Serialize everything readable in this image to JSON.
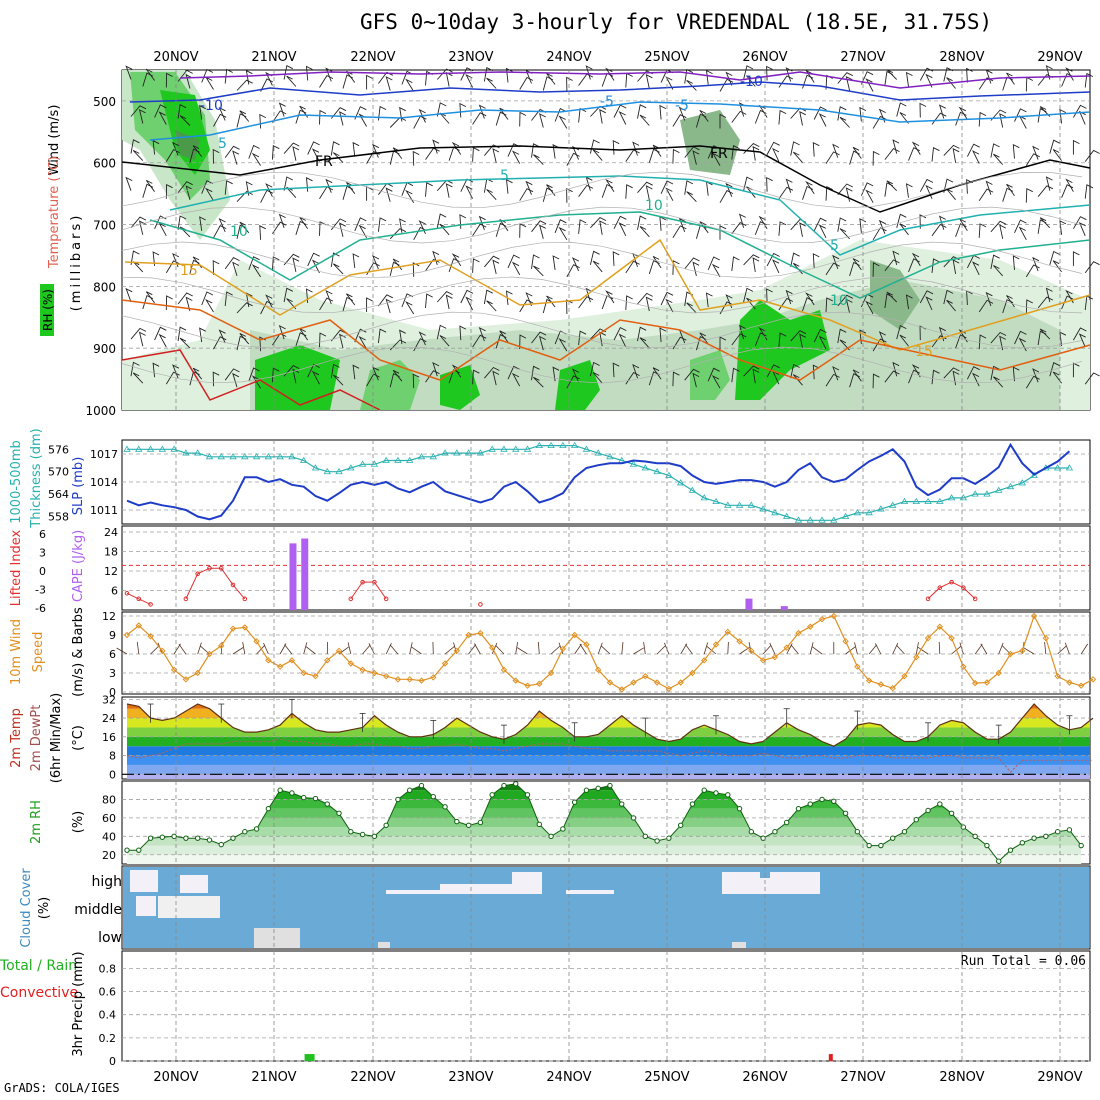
{
  "title": "GFS 0~10day 3-hourly for VREDENDAL (18.5E, 31.75S)",
  "footer": "GrADS: COLA/IGES",
  "dates": [
    "20NOV",
    "21NOV",
    "22NOV",
    "23NOV",
    "24NOV",
    "25NOV",
    "26NOV",
    "27NOV",
    "28NOV",
    "29NOV"
  ],
  "colors": {
    "rh_green": "#1ec81e",
    "thick_cyan": "#2ab0b0",
    "slp_blue": "#1e3cc8",
    "li_red": "#e03030",
    "cape_purple": "#b060f0",
    "wind_orange": "#e09020",
    "cloud_blue": "#6aaad6",
    "temp_orange": "#f0a020",
    "grid_gray": "#a0a0a0"
  },
  "panel_labels": {
    "profile": {
      "wind": "Wind (m/s)",
      "temp": "Temperature (°C)",
      "rh": "RH (%)",
      "pres": "(millibars)"
    },
    "thick": {
      "a": "1000-500mb",
      "b": "Thickness (dm)",
      "c": "SLP (mb)"
    },
    "cape": {
      "a": "Lifted Index",
      "b": "CAPE (J/kg)"
    },
    "wind10": {
      "a": "10m Wind",
      "b": "Speed",
      "c": "(m/s) & Barbs"
    },
    "temp2m": {
      "a": "2m Temp",
      "b": "2m DewPt",
      "c": "(6hr Min/Max)",
      "d": "(°C)"
    },
    "rh2m": {
      "a": "2m RH",
      "b": "(%)"
    },
    "cloud": {
      "a": "Cloud Cover",
      "b": "(%)"
    },
    "precip": {
      "a": "Total / Rain",
      "b": "Convective",
      "c": "3hr Precip (mm)"
    }
  },
  "cloud_levels": [
    "high",
    "middle",
    "low"
  ],
  "run_total": "Run Total = 0.06",
  "contour_labels": [
    {
      "t": "-10",
      "c": "#1e3cc8"
    },
    {
      "t": "-5",
      "c": "#1e90e0"
    },
    {
      "t": "-5",
      "c": "#1e90e0"
    },
    {
      "t": "-10",
      "c": "#1e3cc8"
    },
    {
      "t": "5",
      "c": "#20a0c8"
    },
    {
      "t": "5",
      "c": "#20b0b0"
    },
    {
      "t": "10",
      "c": "#20b090"
    },
    {
      "t": "10",
      "c": "#20b090"
    },
    {
      "t": "15",
      "c": "#e0a020"
    },
    {
      "t": "15",
      "c": "#e0a020"
    },
    {
      "t": "FR",
      "c": "#000000"
    },
    {
      "t": "FR",
      "c": "#000000"
    },
    {
      "t": "5",
      "c": "#20b0b0"
    },
    {
      "t": "10",
      "c": "#20b090"
    }
  ],
  "chart_data": [
    {
      "type": "heatmap",
      "name": "profile",
      "ylabel": "(millibars)",
      "y_ticks": [
        500,
        600,
        700,
        800,
        900,
        1000
      ],
      "ylim": [
        1000,
        450
      ]
    },
    {
      "type": "line",
      "name": "thickness_slp",
      "left_ticks": [
        558,
        564,
        570,
        576
      ],
      "right_ticks": [
        1011,
        1014,
        1017
      ],
      "series": [
        {
          "name": "1000-500mb Thickness (dm)",
          "ylim": [
            556,
            578.5
          ],
          "values": [
            576,
            576,
            576,
            576,
            576,
            575,
            575,
            574,
            574,
            574,
            574,
            574,
            574,
            574,
            574,
            573,
            571,
            570,
            570,
            571,
            572,
            572,
            573,
            573,
            573,
            574,
            574,
            575,
            575,
            575,
            575,
            576,
            576,
            576,
            576,
            577,
            577,
            577,
            577,
            576,
            575,
            574,
            573,
            572,
            571,
            570,
            569,
            567,
            565,
            563,
            562,
            561,
            561,
            561,
            560,
            559,
            558,
            557,
            557,
            557,
            557,
            558,
            559,
            559,
            560,
            561,
            562,
            562,
            562,
            562,
            563,
            563,
            564,
            564,
            565,
            566,
            567,
            569,
            571,
            571,
            571
          ]
        },
        {
          "name": "SLP (mb)",
          "ylim": [
            1009.5,
            1018.5
          ],
          "values": [
            1012,
            1011.5,
            1011.8,
            1011.5,
            1011.3,
            1011,
            1010.3,
            1010,
            1010.4,
            1012,
            1014.5,
            1014.5,
            1014,
            1014.3,
            1013.7,
            1013.5,
            1012.5,
            1012,
            1012.8,
            1013.7,
            1014,
            1013.7,
            1014,
            1013.3,
            1012.9,
            1013.5,
            1014,
            1013,
            1012.6,
            1012.2,
            1011.8,
            1012.2,
            1013.5,
            1014,
            1013,
            1011.8,
            1012.2,
            1012.8,
            1014.5,
            1015.5,
            1015.8,
            1016,
            1016,
            1016.3,
            1016.2,
            1016,
            1016,
            1015.7,
            1014.7,
            1014,
            1013.8,
            1014,
            1014.2,
            1014.2,
            1014,
            1013.5,
            1014,
            1015.3,
            1016,
            1014.5,
            1014,
            1014.3,
            1015.3,
            1016.2,
            1016.8,
            1017.5,
            1016.2,
            1013.5,
            1012.6,
            1013.2,
            1014.4,
            1014.4,
            1013.8,
            1014.6,
            1015.6,
            1018,
            1016,
            1014.8,
            1015.5,
            1016.2,
            1017.3
          ]
        }
      ]
    },
    {
      "type": "bar",
      "name": "cape_li",
      "li_ticks": [
        "6",
        "3",
        "0",
        "-3",
        "-6"
      ],
      "cape_ticks": [
        6,
        12,
        18,
        24
      ],
      "cape_ylim": [
        0,
        24
      ],
      "li_ylim": [
        8,
        -6
      ],
      "cape": [
        0,
        0,
        0,
        0,
        0,
        0,
        0,
        20.5,
        22,
        0,
        0,
        0,
        0,
        0,
        0,
        0,
        0,
        0,
        0,
        0,
        0,
        0,
        0,
        0,
        0,
        0,
        0,
        0,
        0,
        0,
        0,
        0,
        0,
        0,
        0,
        0,
        0,
        0,
        0,
        0,
        0,
        0,
        0,
        0,
        0,
        0,
        0,
        0,
        0,
        0,
        0,
        0,
        0,
        0,
        0,
        0,
        0,
        0,
        0,
        0,
        0,
        0,
        0,
        0,
        0,
        0,
        0,
        0,
        0,
        0,
        0,
        0,
        0,
        0,
        0,
        0,
        0,
        0,
        0,
        0,
        0,
        0,
        0
      ],
      "cape_small": [
        {
          "x": 52.5,
          "v": 3.5
        },
        {
          "x": 55.5,
          "v": 1.2
        }
      ],
      "li_segments": [
        {
          "x": [
            0,
            1,
            2
          ],
          "y": [
            5,
            6,
            7
          ]
        },
        {
          "x": [
            5,
            6,
            7,
            8,
            9,
            10
          ],
          "y": [
            6,
            1.5,
            0.5,
            0.5,
            3.5,
            6
          ]
        },
        {
          "x": [
            19,
            20,
            21,
            22
          ],
          "y": [
            6,
            3,
            3,
            6
          ]
        },
        {
          "x": [
            30
          ],
          "y": [
            7
          ]
        },
        {
          "x": [
            68,
            69,
            70,
            71,
            72
          ],
          "y": [
            6,
            4,
            3,
            4,
            6
          ]
        }
      ]
    },
    {
      "type": "line",
      "name": "wind10m",
      "y_ticks": [
        0,
        3,
        6,
        9,
        12
      ],
      "ylim": [
        0,
        12
      ],
      "values": [
        9,
        10.5,
        8.8,
        6.5,
        3.5,
        2,
        3,
        6,
        7.3,
        10,
        10.2,
        8,
        5,
        4,
        5,
        3,
        2.5,
        5,
        6.5,
        4.5,
        3.5,
        3,
        2.5,
        2,
        2,
        1.8,
        2.3,
        4.5,
        6.5,
        9,
        9.3,
        7,
        3.5,
        1.8,
        1,
        1.3,
        3,
        6.8,
        9,
        7.5,
        3.5,
        1.5,
        0.4,
        1.5,
        2.5,
        1.5,
        0.5,
        1.5,
        3,
        5,
        7.5,
        9.5,
        8,
        6.5,
        5,
        5.5,
        7,
        9.3,
        10.3,
        11.5,
        12,
        8,
        4,
        1.8,
        1.2,
        0.6,
        2.5,
        5.5,
        8.5,
        10.3,
        8.5,
        4,
        1.4,
        1.5,
        3,
        6,
        6.5,
        12,
        8.5,
        2.5,
        1.5,
        1,
        2
      ]
    },
    {
      "type": "area",
      "name": "temp_dewpt",
      "y_ticks": [
        0,
        8,
        16,
        24,
        32
      ],
      "ylim": [
        -2,
        33
      ],
      "temp": [
        30,
        29,
        24,
        23,
        24,
        27,
        30,
        28,
        24,
        20,
        18,
        18,
        19,
        21,
        26,
        22,
        19,
        18,
        18,
        19,
        20,
        25,
        21,
        18,
        16,
        16,
        17,
        20,
        24,
        21,
        18,
        16,
        15,
        17,
        21,
        27,
        23,
        20,
        16,
        16,
        17,
        21,
        25,
        21,
        18,
        15,
        14,
        15,
        19,
        21,
        19,
        17,
        14,
        13,
        14,
        18,
        22,
        19,
        17,
        14,
        12,
        15,
        21,
        22,
        21,
        17,
        14,
        14,
        16,
        21,
        23,
        22,
        18,
        15,
        15,
        18,
        24,
        30,
        25,
        21,
        19,
        20,
        24
      ],
      "dewpt": [
        8,
        7,
        8,
        9,
        11,
        13,
        13,
        13,
        13,
        14,
        14,
        14,
        14,
        15,
        14,
        14,
        13,
        13,
        12,
        12,
        13,
        13,
        12,
        12,
        11,
        11,
        12,
        12,
        13,
        12,
        11,
        11,
        10,
        11,
        12,
        13,
        13,
        13,
        12,
        11,
        11,
        10,
        10,
        10,
        10,
        10,
        9,
        8,
        9,
        10,
        9,
        8,
        8,
        8,
        9,
        8,
        7,
        7,
        8,
        8,
        7,
        7,
        8,
        8,
        8,
        7,
        7,
        7,
        7,
        8,
        8,
        7,
        7,
        7,
        7,
        1,
        6,
        6,
        6,
        6,
        6,
        6,
        6
      ]
    },
    {
      "type": "area",
      "name": "rh2m",
      "y_ticks": [
        20,
        40,
        60,
        80
      ],
      "ylim": [
        10,
        100
      ],
      "values": [
        25,
        25,
        38,
        39,
        40,
        38,
        38,
        36,
        31,
        38,
        45,
        48,
        70,
        90,
        87,
        82,
        81,
        75,
        65,
        45,
        42,
        40,
        52,
        80,
        90,
        95,
        83,
        72,
        56,
        52,
        55,
        85,
        95,
        97,
        85,
        53,
        40,
        48,
        77,
        90,
        92,
        95,
        75,
        60,
        40,
        35,
        38,
        52,
        75,
        90,
        87,
        85,
        70,
        45,
        38,
        45,
        55,
        70,
        75,
        80,
        78,
        65,
        45,
        30,
        30,
        38,
        45,
        58,
        68,
        75,
        65,
        50,
        40,
        30,
        13,
        25,
        33,
        38,
        40,
        45,
        47,
        30
      ]
    },
    {
      "type": "heatmap",
      "name": "cloud_cover",
      "categories": [
        "high",
        "middle",
        "low"
      ]
    },
    {
      "type": "bar",
      "name": "precip3h",
      "y_ticks": [
        0,
        0.2,
        0.4,
        0.6,
        0.8
      ],
      "ylim": [
        0,
        0.95
      ],
      "bars": [
        {
          "x": 15.5,
          "v": 0.06,
          "kind": "total"
        },
        {
          "x": 60,
          "v": 0.06,
          "kind": "convective"
        }
      ]
    }
  ]
}
